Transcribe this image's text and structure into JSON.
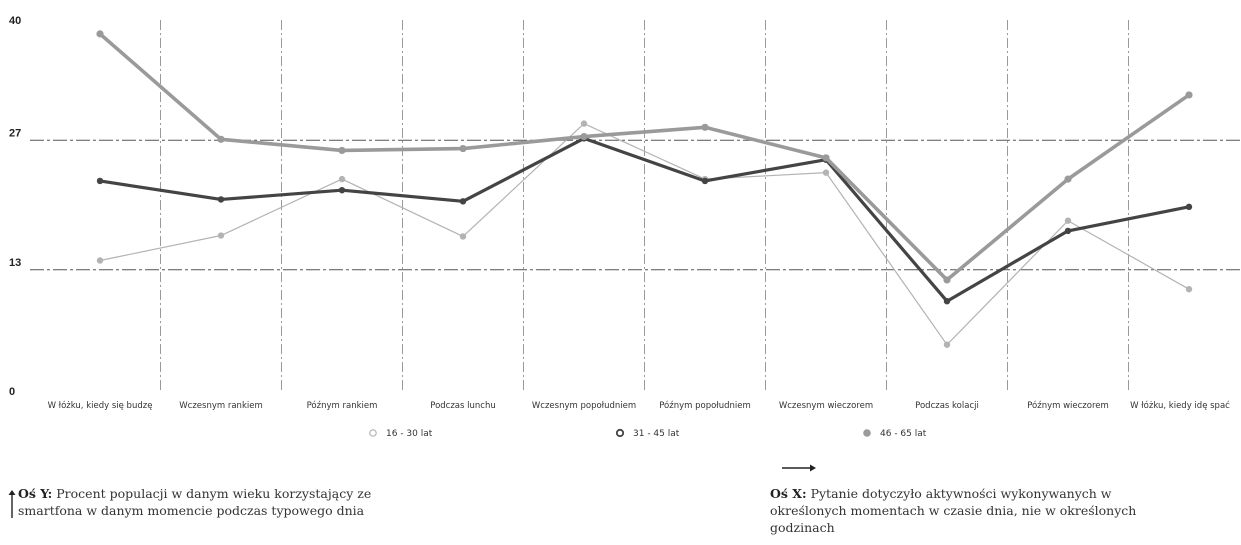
{
  "chart_data": {
    "type": "line",
    "categories": [
      "W łóżku, kiedy się budzę",
      "Wczesnym rankiem",
      "Późnym rankiem",
      "Podczas lunchu",
      "Wczesnym popołudniem",
      "Późnym popołudniem",
      "Wczesnym wieczorem",
      "Podczas kolacji",
      "Późnym wieczorem",
      "W łóżku, kiedy idę spać"
    ],
    "series": [
      {
        "name": "16 - 30 lat",
        "color": "#b3b3b3",
        "values": [
          14,
          16.7,
          22.8,
          16.6,
          28.8,
          22.8,
          23.5,
          4.9,
          18.3,
          10.9
        ]
      },
      {
        "name": "31 - 45 lat",
        "color": "#444444",
        "values": [
          22.6,
          20.6,
          21.6,
          20.4,
          27.2,
          22.6,
          24.9,
          9.6,
          17.2,
          19.8
        ]
      },
      {
        "name": "46 - 65 lat",
        "color": "#9a9a9a",
        "values": [
          38.5,
          27.1,
          25.9,
          26.1,
          27.4,
          28.4,
          25.1,
          11.9,
          22.8,
          31.9
        ]
      }
    ],
    "yticks": [
      "40",
      "27",
      "13",
      "0"
    ],
    "ylim": [
      0,
      40
    ],
    "grid": "dashed horizontal at 13 and 27, dash-dot vertical separators between categories",
    "legend": "bottom"
  },
  "notes": {
    "y_label": "Oś Y:",
    "y_text": "Procent populacji w danym wieku korzystający ze smartfona w danym momencie podczas typowego dnia",
    "x_label": "Oś X:",
    "x_text": "Pytanie dotyczyło aktywności wykonywanych w określonych momentach w czasie dnia, nie w określonych godzinach"
  }
}
